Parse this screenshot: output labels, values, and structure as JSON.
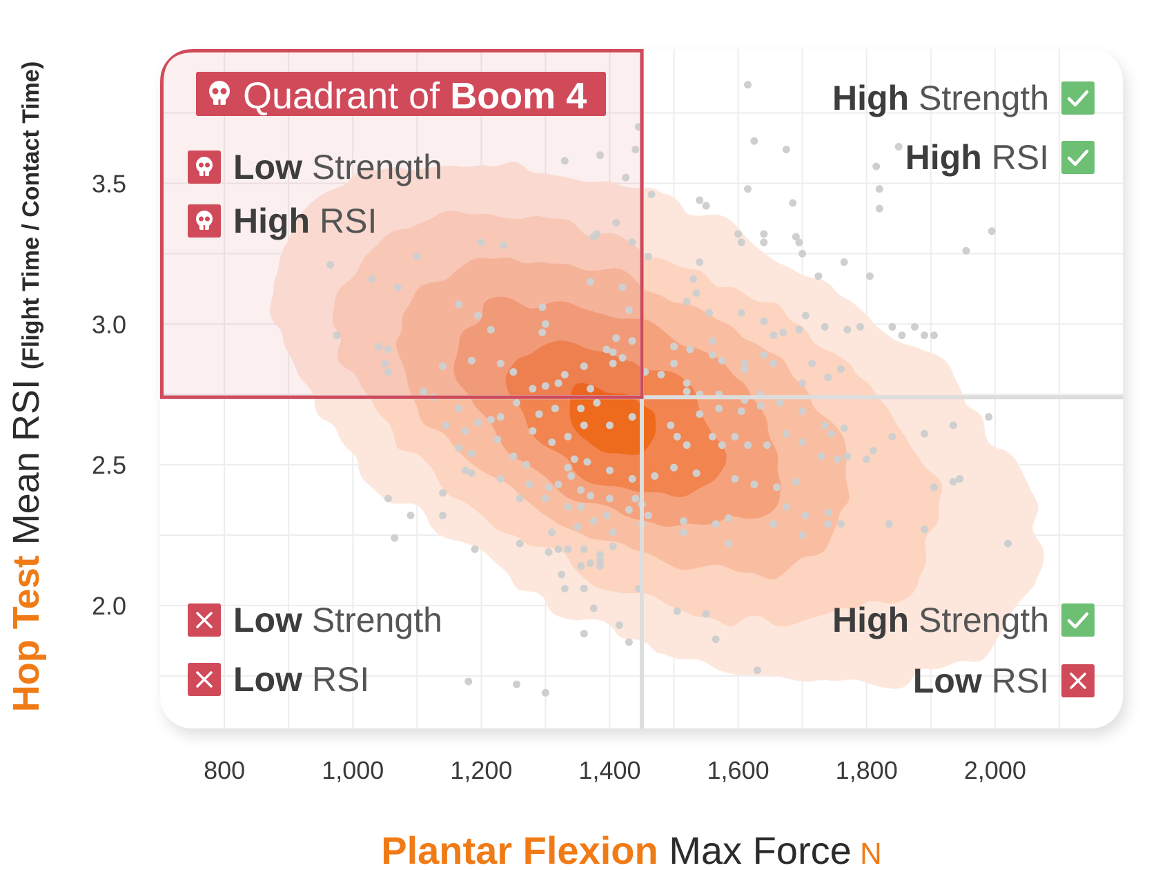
{
  "colors": {
    "accent": "#f07b16",
    "danger": "#d04a5a",
    "success": "#6dbf73",
    "dot": "#cfcfcf",
    "density": [
      "#fde7dc",
      "#fcd4c0",
      "#f9bea1",
      "#f5a27c",
      "#f1844f",
      "#ee6a1d"
    ]
  },
  "badge": {
    "icon": "skull-icon",
    "text_regular": "Quadrant of ",
    "text_bold": "Boom 4"
  },
  "quadrants": {
    "top_left": [
      {
        "icon": "skull-icon",
        "bold": "Low",
        "regular": " Strength"
      },
      {
        "icon": "skull-icon",
        "bold": "High",
        "regular": " RSI"
      }
    ],
    "top_right": [
      {
        "icon": "check-icon",
        "bold": "High",
        "regular": " Strength"
      },
      {
        "icon": "check-icon",
        "bold": "High",
        "regular": " RSI"
      }
    ],
    "bottom_left": [
      {
        "icon": "cross-icon",
        "bold": "Low",
        "regular": " Strength"
      },
      {
        "icon": "cross-icon",
        "bold": "Low",
        "regular": " RSI"
      }
    ],
    "bottom_right": [
      {
        "icon": "check-icon",
        "bold": "High",
        "regular": " Strength"
      },
      {
        "icon": "cross-icon",
        "bold": "Low",
        "regular": " RSI"
      }
    ]
  },
  "chart_data": {
    "type": "scatter",
    "overlay": "density contours",
    "xlabel": {
      "accent": "Plantar Flexion",
      "main": " Max Force",
      "unit": " N"
    },
    "ylabel": {
      "accent": "Hop Test",
      "main": " Mean RSI",
      "sub": "(Flight Time / Contact Time)"
    },
    "xlim": [
      730,
      2170
    ],
    "ylim": [
      1.6,
      3.95
    ],
    "xticks": [
      800,
      1000,
      1200,
      1400,
      1600,
      1800,
      2000
    ],
    "xtick_labels": [
      "800",
      "1,000",
      "1,200",
      "1,400",
      "1,600",
      "1,800",
      "2,000"
    ],
    "yticks": [
      2.0,
      2.5,
      3.0,
      3.5
    ],
    "ytick_labels": [
      "2.0",
      "2.5",
      "3.0",
      "3.5"
    ],
    "grid": true,
    "threshold": {
      "x": 1450,
      "y": 2.74
    },
    "density_center": {
      "x": 1410,
      "y": 2.66
    },
    "points": [
      [
        1615,
        3.85
      ],
      [
        1445,
        3.7
      ],
      [
        1625,
        3.65
      ],
      [
        1675,
        3.62
      ],
      [
        1850,
        3.63
      ],
      [
        1385,
        3.6
      ],
      [
        1440,
        3.62
      ],
      [
        1330,
        3.58
      ],
      [
        1815,
        3.56
      ],
      [
        1425,
        3.52
      ],
      [
        1615,
        3.48
      ],
      [
        1820,
        3.48
      ],
      [
        1465,
        3.46
      ],
      [
        1540,
        3.44
      ],
      [
        1550,
        3.42
      ],
      [
        1685,
        3.43
      ],
      [
        1820,
        3.41
      ],
      [
        1410,
        3.36
      ],
      [
        1380,
        3.32
      ],
      [
        1600,
        3.32
      ],
      [
        1640,
        3.32
      ],
      [
        1690,
        3.31
      ],
      [
        1605,
        3.29
      ],
      [
        1640,
        3.29
      ],
      [
        1695,
        3.29
      ],
      [
        1995,
        3.33
      ],
      [
        1375,
        3.31
      ],
      [
        1435,
        3.29
      ],
      [
        1460,
        3.24
      ],
      [
        1200,
        3.29
      ],
      [
        1100,
        3.24
      ],
      [
        965,
        3.21
      ],
      [
        1540,
        3.22
      ],
      [
        1235,
        3.28
      ],
      [
        1530,
        3.16
      ],
      [
        1955,
        3.26
      ],
      [
        1700,
        3.25
      ],
      [
        1765,
        3.22
      ],
      [
        1725,
        3.17
      ],
      [
        1805,
        3.17
      ],
      [
        1370,
        3.15
      ],
      [
        1420,
        3.13
      ],
      [
        1030,
        3.16
      ],
      [
        1070,
        3.13
      ],
      [
        1520,
        3.08
      ],
      [
        1535,
        3.11
      ],
      [
        1295,
        3.06
      ],
      [
        1555,
        3.04
      ],
      [
        1605,
        3.04
      ],
      [
        1640,
        3.01
      ],
      [
        1655,
        2.96
      ],
      [
        1705,
        3.03
      ],
      [
        1695,
        2.98
      ],
      [
        1670,
        2.97
      ],
      [
        1735,
        2.99
      ],
      [
        1770,
        2.98
      ],
      [
        1790,
        2.99
      ],
      [
        1840,
        2.99
      ],
      [
        1855,
        2.96
      ],
      [
        1875,
        2.99
      ],
      [
        1890,
        2.96
      ],
      [
        1905,
        2.96
      ],
      [
        1165,
        3.07
      ],
      [
        1195,
        3.03
      ],
      [
        1215,
        2.98
      ],
      [
        1410,
        2.95
      ],
      [
        1430,
        3.05
      ],
      [
        1435,
        2.94
      ],
      [
        1300,
        3.0
      ],
      [
        1295,
        2.97
      ],
      [
        1560,
        2.94
      ],
      [
        1500,
        2.92
      ],
      [
        1525,
        2.91
      ],
      [
        1560,
        2.89
      ],
      [
        1575,
        2.87
      ],
      [
        1610,
        2.86
      ],
      [
        1610,
        2.84
      ],
      [
        1640,
        2.89
      ],
      [
        1655,
        2.86
      ],
      [
        1715,
        2.86
      ],
      [
        1740,
        2.81
      ],
      [
        1760,
        2.84
      ],
      [
        1700,
        2.79
      ],
      [
        1395,
        2.91
      ],
      [
        1405,
        2.9
      ],
      [
        1420,
        2.88
      ],
      [
        1455,
        2.83
      ],
      [
        1405,
        2.86
      ],
      [
        1500,
        2.86
      ],
      [
        1480,
        2.82
      ],
      [
        1520,
        2.79
      ],
      [
        1520,
        2.76
      ],
      [
        1540,
        2.75
      ],
      [
        1570,
        2.75
      ],
      [
        1610,
        2.73
      ],
      [
        1635,
        2.75
      ],
      [
        975,
        2.96
      ],
      [
        1040,
        2.92
      ],
      [
        1055,
        2.91
      ],
      [
        1050,
        2.86
      ],
      [
        1055,
        2.83
      ],
      [
        1250,
        2.83
      ],
      [
        1230,
        2.86
      ],
      [
        1185,
        2.87
      ],
      [
        1140,
        2.85
      ],
      [
        1330,
        2.82
      ],
      [
        1360,
        2.85
      ],
      [
        1280,
        2.77
      ],
      [
        1300,
        2.78
      ],
      [
        1320,
        2.79
      ],
      [
        1370,
        2.77
      ],
      [
        1110,
        2.76
      ],
      [
        1125,
        2.74
      ],
      [
        1165,
        2.7
      ],
      [
        1215,
        2.66
      ],
      [
        1230,
        2.67
      ],
      [
        1255,
        2.72
      ],
      [
        1290,
        2.68
      ],
      [
        1315,
        2.7
      ],
      [
        1355,
        2.7
      ],
      [
        1380,
        2.72
      ],
      [
        1400,
        2.64
      ],
      [
        1435,
        2.67
      ],
      [
        1495,
        2.64
      ],
      [
        1540,
        2.68
      ],
      [
        1570,
        2.7
      ],
      [
        1605,
        2.69
      ],
      [
        1635,
        2.71
      ],
      [
        1665,
        2.72
      ],
      [
        1700,
        2.69
      ],
      [
        1735,
        2.64
      ],
      [
        1745,
        2.61
      ],
      [
        1765,
        2.63
      ],
      [
        1145,
        2.64
      ],
      [
        1175,
        2.62
      ],
      [
        1195,
        2.65
      ],
      [
        1225,
        2.59
      ],
      [
        1280,
        2.62
      ],
      [
        1310,
        2.58
      ],
      [
        1335,
        2.6
      ],
      [
        1360,
        2.64
      ],
      [
        1505,
        2.6
      ],
      [
        1520,
        2.57
      ],
      [
        1560,
        2.6
      ],
      [
        1575,
        2.57
      ],
      [
        1595,
        2.6
      ],
      [
        1615,
        2.57
      ],
      [
        1645,
        2.57
      ],
      [
        1675,
        2.61
      ],
      [
        1700,
        2.58
      ],
      [
        1730,
        2.53
      ],
      [
        1755,
        2.52
      ],
      [
        1770,
        2.53
      ],
      [
        1800,
        2.52
      ],
      [
        1810,
        2.55
      ],
      [
        1840,
        2.6
      ],
      [
        1890,
        2.61
      ],
      [
        1935,
        2.64
      ],
      [
        1990,
        2.67
      ],
      [
        1165,
        2.56
      ],
      [
        1185,
        2.54
      ],
      [
        1250,
        2.53
      ],
      [
        1270,
        2.5
      ],
      [
        1335,
        2.49
      ],
      [
        1345,
        2.52
      ],
      [
        1365,
        2.51
      ],
      [
        1400,
        2.48
      ],
      [
        1435,
        2.45
      ],
      [
        1470,
        2.46
      ],
      [
        1500,
        2.49
      ],
      [
        1535,
        2.47
      ],
      [
        1595,
        2.45
      ],
      [
        1625,
        2.43
      ],
      [
        1660,
        2.42
      ],
      [
        1690,
        2.44
      ],
      [
        1175,
        2.48
      ],
      [
        1185,
        2.47
      ],
      [
        1230,
        2.45
      ],
      [
        1275,
        2.43
      ],
      [
        1305,
        2.42
      ],
      [
        1320,
        2.43
      ],
      [
        1340,
        2.46
      ],
      [
        1355,
        2.41
      ],
      [
        1370,
        2.39
      ],
      [
        1400,
        2.38
      ],
      [
        1440,
        2.38
      ],
      [
        1450,
        2.36
      ],
      [
        1260,
        2.38
      ],
      [
        1300,
        2.38
      ],
      [
        1335,
        2.35
      ],
      [
        1355,
        2.35
      ],
      [
        1395,
        2.32
      ],
      [
        1430,
        2.34
      ],
      [
        1460,
        2.32
      ],
      [
        1515,
        2.3
      ],
      [
        1565,
        2.29
      ],
      [
        1585,
        2.31
      ],
      [
        1655,
        2.29
      ],
      [
        1675,
        2.35
      ],
      [
        1705,
        2.32
      ],
      [
        1740,
        2.33
      ],
      [
        1760,
        2.29
      ],
      [
        1905,
        2.42
      ],
      [
        1935,
        2.44
      ],
      [
        1945,
        2.45
      ],
      [
        1055,
        2.38
      ],
      [
        1140,
        2.4
      ],
      [
        1140,
        2.32
      ],
      [
        1090,
        2.32
      ],
      [
        1310,
        2.26
      ],
      [
        1350,
        2.28
      ],
      [
        1375,
        2.3
      ],
      [
        1405,
        2.26
      ],
      [
        1450,
        2.29
      ],
      [
        1515,
        2.26
      ],
      [
        1585,
        2.22
      ],
      [
        1700,
        2.25
      ],
      [
        1740,
        2.29
      ],
      [
        1835,
        2.29
      ],
      [
        1890,
        2.27
      ],
      [
        2020,
        2.22
      ],
      [
        1065,
        2.24
      ],
      [
        1190,
        2.2
      ],
      [
        1260,
        2.22
      ],
      [
        1305,
        2.19
      ],
      [
        1320,
        2.2
      ],
      [
        1335,
        2.2
      ],
      [
        1360,
        2.2
      ],
      [
        1385,
        2.18
      ],
      [
        1405,
        2.21
      ],
      [
        1355,
        2.14
      ],
      [
        1370,
        2.15
      ],
      [
        1385,
        2.16
      ],
      [
        1385,
        2.14
      ],
      [
        1325,
        2.11
      ],
      [
        1360,
        2.06
      ],
      [
        1330,
        2.06
      ],
      [
        1445,
        2.06
      ],
      [
        1505,
        1.98
      ],
      [
        1550,
        1.97
      ],
      [
        1415,
        1.93
      ],
      [
        1375,
        1.99
      ],
      [
        1360,
        1.9
      ],
      [
        1430,
        1.87
      ],
      [
        1565,
        1.88
      ],
      [
        1630,
        1.77
      ],
      [
        1180,
        1.73
      ],
      [
        1255,
        1.72
      ],
      [
        1300,
        1.69
      ]
    ]
  }
}
